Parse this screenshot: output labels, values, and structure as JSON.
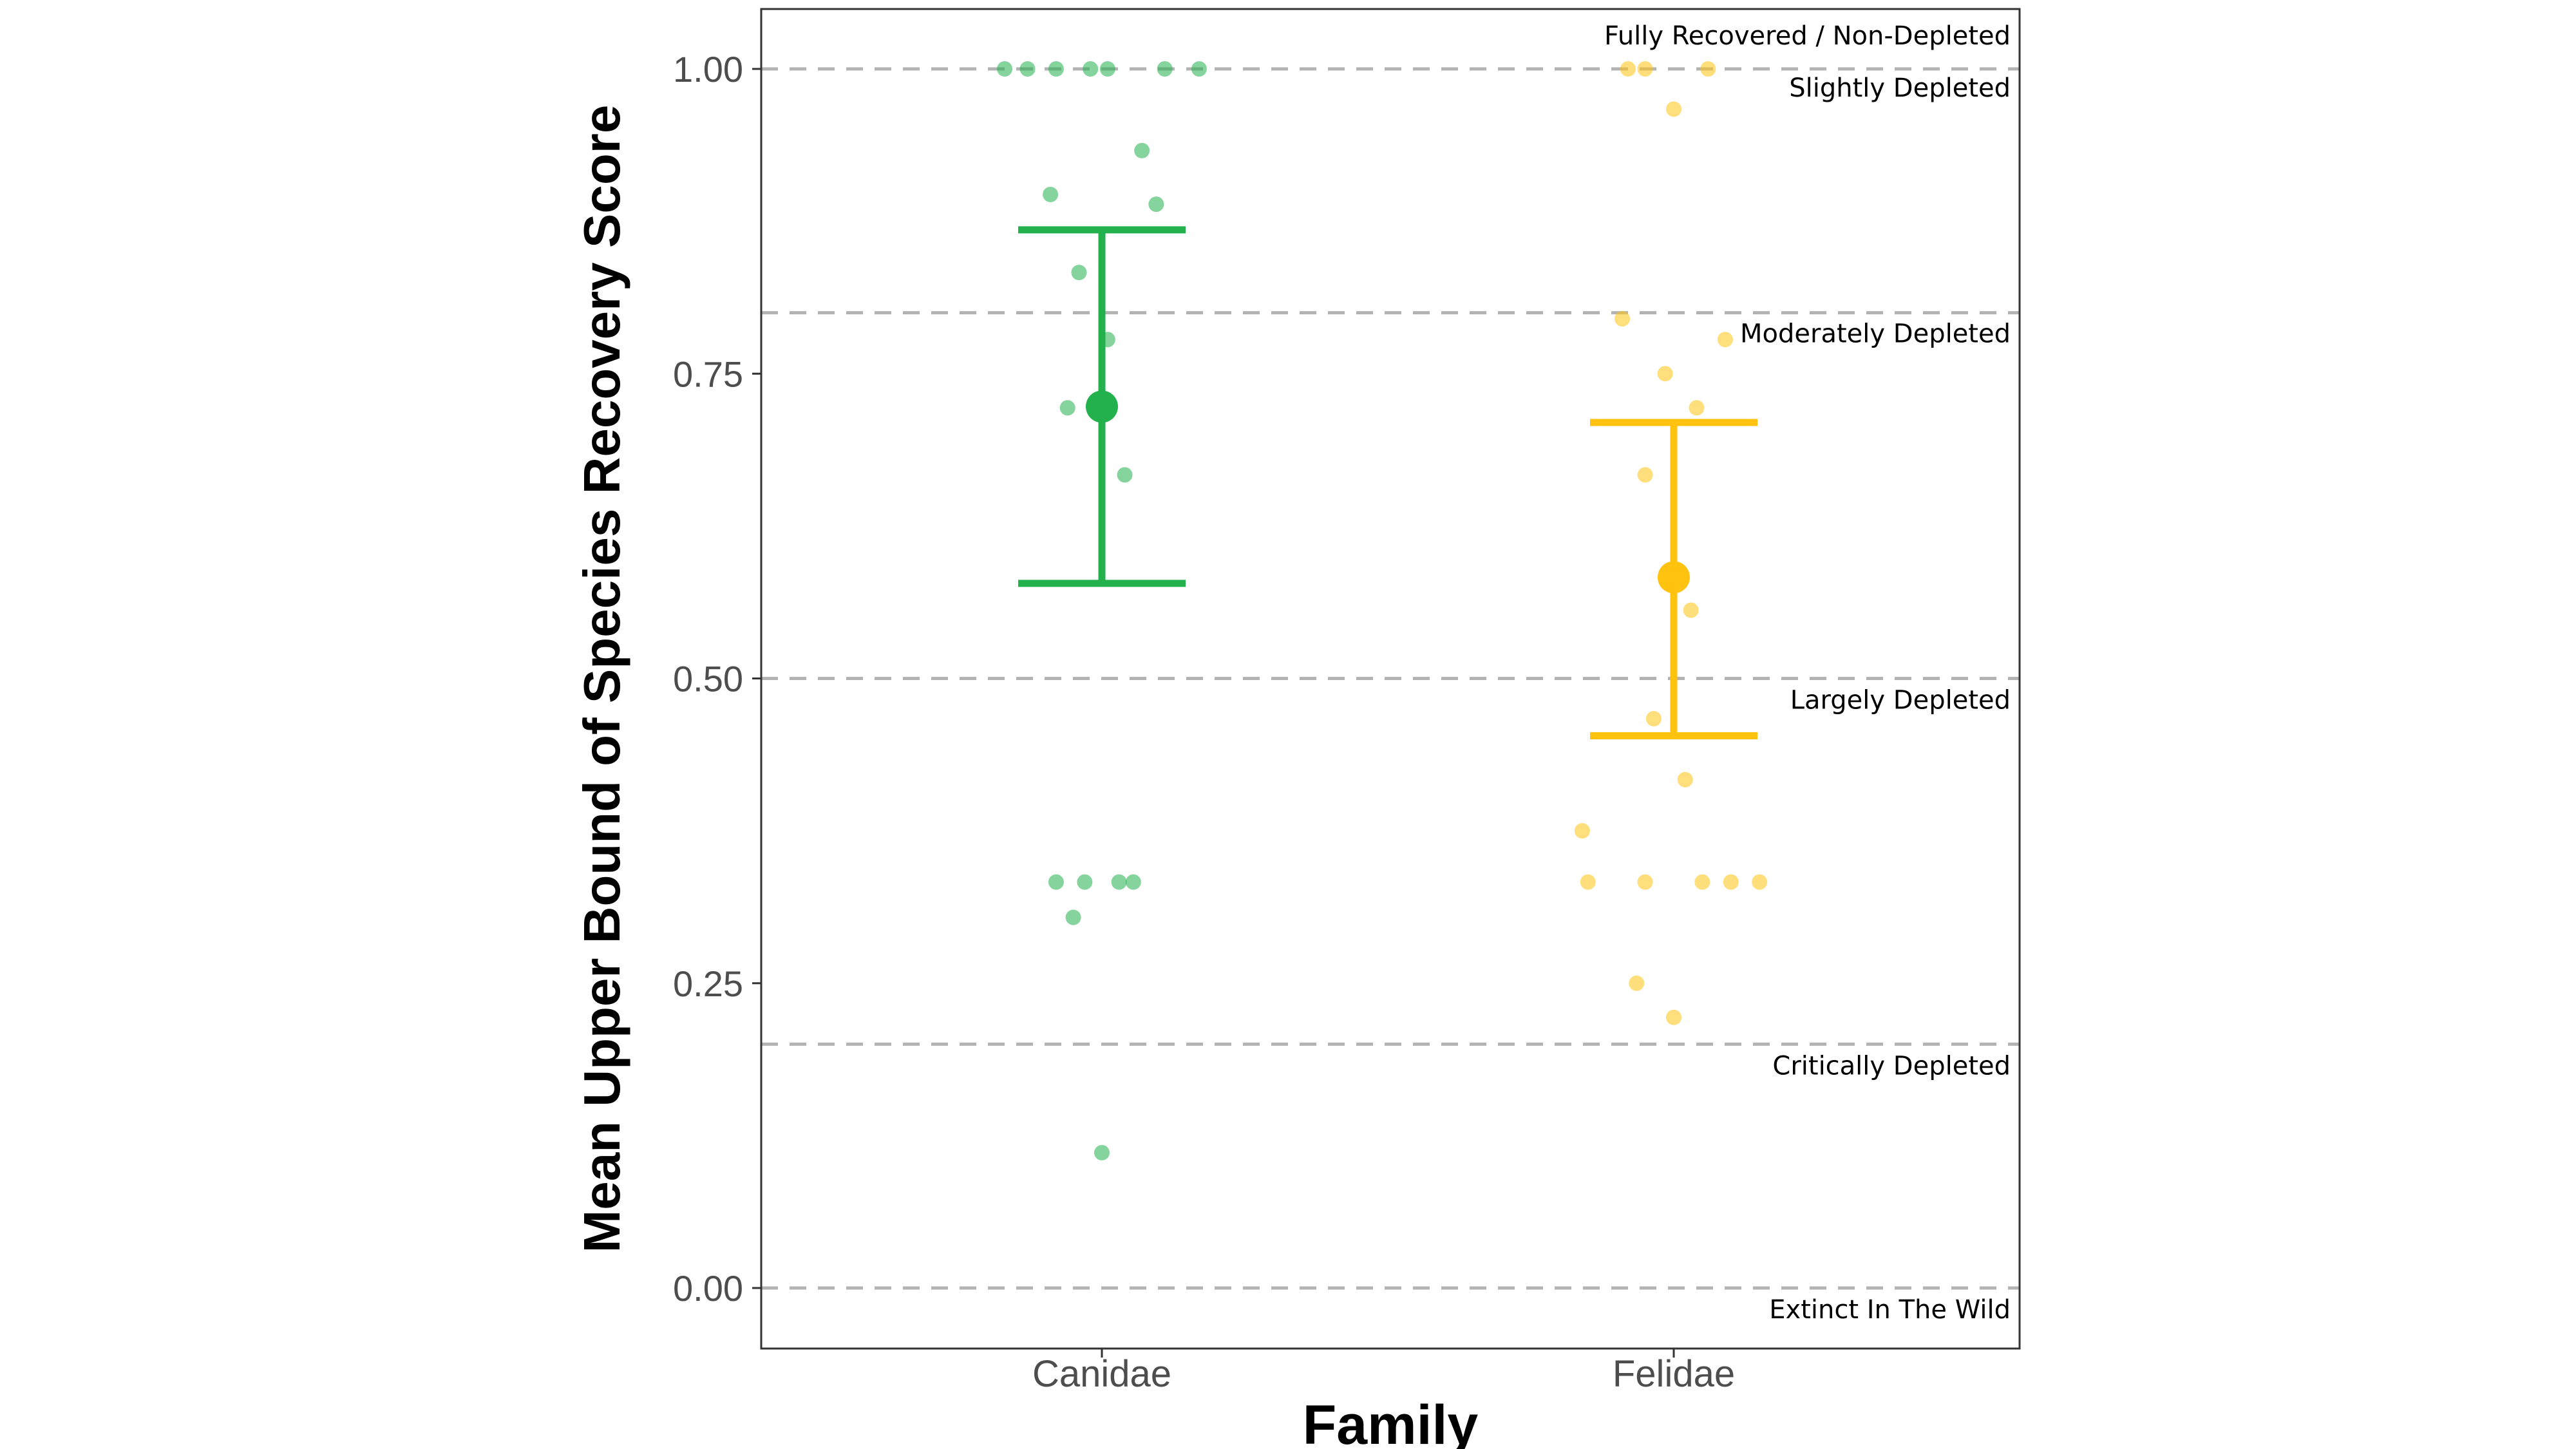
{
  "chart_data": {
    "type": "scatter",
    "ylabel": "Mean Upper Bound of Species Recovery Score",
    "xlabel": "Family",
    "categories": [
      "Canidae",
      "Felidae"
    ],
    "ylim": [
      -0.05,
      1.05
    ],
    "yticks": [
      "0.00",
      "0.25",
      "0.50",
      "0.75",
      "1.00"
    ],
    "ytick_values": [
      0.0,
      0.25,
      0.5,
      0.75,
      1.0
    ],
    "grid": false,
    "legend": "none",
    "thresholds": [
      {
        "y": 1.0,
        "label_above": "Fully Recovered / Non-Depleted",
        "label_below": "Slightly Depleted"
      },
      {
        "y": 0.8,
        "label_below": "Moderately Depleted"
      },
      {
        "y": 0.5,
        "label_below": "Largely Depleted"
      },
      {
        "y": 0.2,
        "label_below": "Critically Depleted"
      },
      {
        "y": 0.0,
        "label_below": "Extinct In The Wild"
      }
    ],
    "series": [
      {
        "category": "Canidae",
        "color": "#22b14c",
        "mean": 0.723,
        "ci_low": 0.578,
        "ci_high": 0.868,
        "points": [
          {
            "jitter": -0.17,
            "y": 1.0
          },
          {
            "jitter": -0.13,
            "y": 1.0
          },
          {
            "jitter": -0.08,
            "y": 1.0
          },
          {
            "jitter": -0.02,
            "y": 1.0
          },
          {
            "jitter": 0.01,
            "y": 1.0
          },
          {
            "jitter": 0.11,
            "y": 1.0
          },
          {
            "jitter": 0.17,
            "y": 1.0
          },
          {
            "jitter": 0.07,
            "y": 0.933
          },
          {
            "jitter": -0.09,
            "y": 0.897
          },
          {
            "jitter": 0.095,
            "y": 0.889
          },
          {
            "jitter": -0.04,
            "y": 0.833
          },
          {
            "jitter": 0.01,
            "y": 0.778
          },
          {
            "jitter": -0.06,
            "y": 0.722
          },
          {
            "jitter": 0.04,
            "y": 0.667
          },
          {
            "jitter": -0.08,
            "y": 0.333
          },
          {
            "jitter": -0.03,
            "y": 0.333
          },
          {
            "jitter": 0.03,
            "y": 0.333
          },
          {
            "jitter": 0.055,
            "y": 0.333
          },
          {
            "jitter": -0.05,
            "y": 0.304
          },
          {
            "jitter": 0.0,
            "y": 0.111
          }
        ]
      },
      {
        "category": "Felidae",
        "color": "#ffc20e",
        "mean": 0.583,
        "ci_low": 0.453,
        "ci_high": 0.71,
        "points": [
          {
            "jitter": -0.08,
            "y": 1.0
          },
          {
            "jitter": -0.05,
            "y": 1.0
          },
          {
            "jitter": 0.06,
            "y": 1.0
          },
          {
            "jitter": 0.0,
            "y": 0.967
          },
          {
            "jitter": -0.09,
            "y": 0.795
          },
          {
            "jitter": 0.09,
            "y": 0.778
          },
          {
            "jitter": -0.015,
            "y": 0.75
          },
          {
            "jitter": 0.04,
            "y": 0.722
          },
          {
            "jitter": -0.05,
            "y": 0.667
          },
          {
            "jitter": 0.03,
            "y": 0.556
          },
          {
            "jitter": -0.035,
            "y": 0.467
          },
          {
            "jitter": 0.02,
            "y": 0.417
          },
          {
            "jitter": -0.16,
            "y": 0.375
          },
          {
            "jitter": -0.15,
            "y": 0.333
          },
          {
            "jitter": -0.05,
            "y": 0.333
          },
          {
            "jitter": 0.05,
            "y": 0.333
          },
          {
            "jitter": 0.1,
            "y": 0.333
          },
          {
            "jitter": 0.15,
            "y": 0.333
          },
          {
            "jitter": -0.065,
            "y": 0.25
          },
          {
            "jitter": 0.0,
            "y": 0.222
          }
        ]
      }
    ]
  }
}
